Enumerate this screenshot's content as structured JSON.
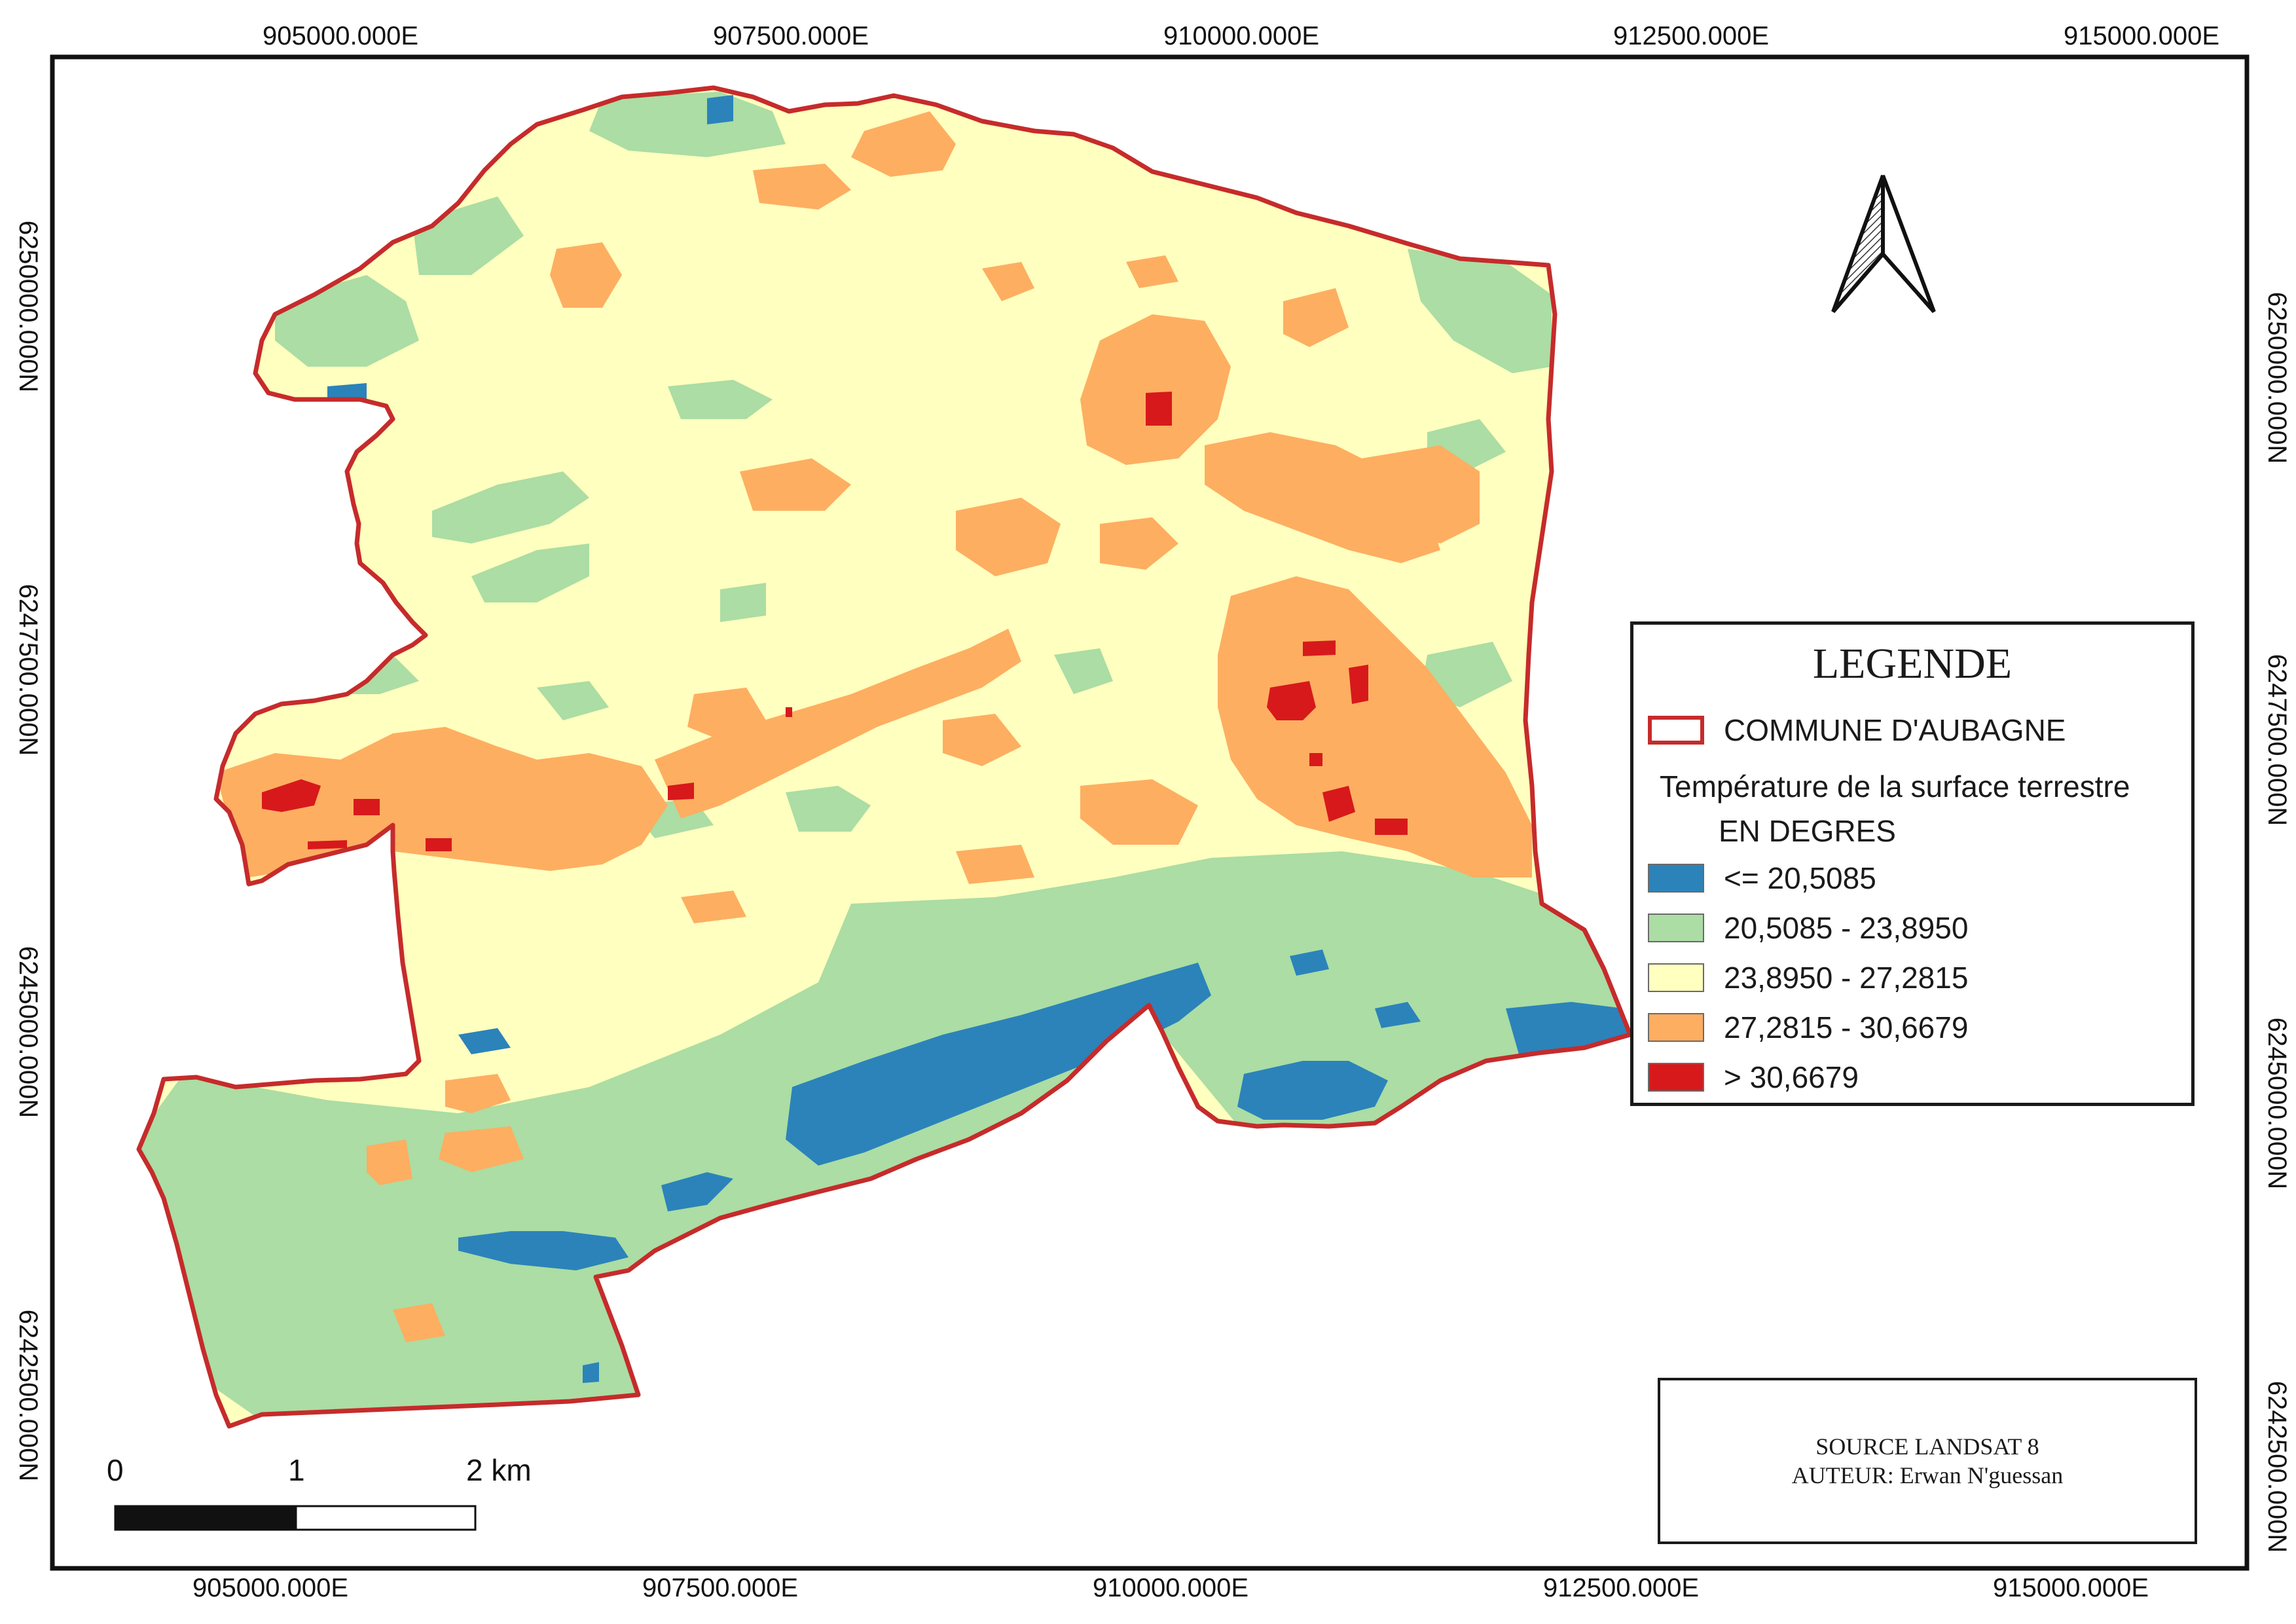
{
  "map": {
    "grid_labels": {
      "top": [
        "905000.000E",
        "907500.000E",
        "910000.000E",
        "912500.000E",
        "915000.000E"
      ],
      "bottom": [
        "905000.000E",
        "907500.000E",
        "910000.000E",
        "912500.000E",
        "915000.000E"
      ],
      "left": [
        "6250000.000N",
        "6247500.000N",
        "6245000.000N",
        "6242500.000N"
      ],
      "right": [
        "6250000.000N",
        "6247500.000N",
        "6245000.000N",
        "6242500.000N"
      ]
    },
    "colors": {
      "boundary": "#c62b2b",
      "class_1": "#2b83ba",
      "class_2": "#abdda4",
      "class_3": "#ffffbf",
      "class_4": "#fdae61",
      "class_5": "#d7191c"
    }
  },
  "legend": {
    "title": "LEGENDE",
    "boundary_label": "COMMUNE D'AUBAGNE",
    "layer_title": "Température de la surface terrestre",
    "units": "EN DEGRES",
    "classes": [
      {
        "label": "<= 20,5085",
        "color": "#2b83ba"
      },
      {
        "label": "20,5085 - 23,8950",
        "color": "#abdda4"
      },
      {
        "label": "23,8950 - 27,2815",
        "color": "#ffffbf"
      },
      {
        "label": "27,2815 - 30,6679",
        "color": "#fdae61"
      },
      {
        "label": "> 30,6679",
        "color": "#d7191c"
      }
    ]
  },
  "scale_bar": {
    "labels": [
      "0",
      "1",
      "2 km"
    ]
  },
  "source": {
    "line1": "SOURCE LANDSAT 8",
    "line2": "AUTEUR: Erwan N'guessan"
  },
  "north_arrow": {
    "icon": "north-arrow-icon"
  }
}
